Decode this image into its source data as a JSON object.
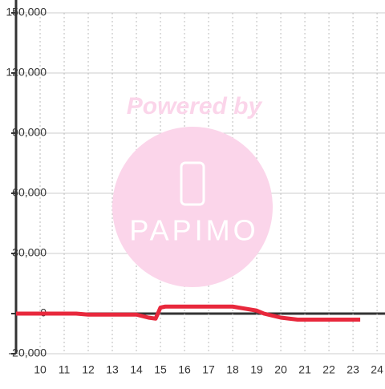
{
  "chart_data": {
    "type": "line",
    "x": [
      9,
      11.5,
      12,
      14,
      14.5,
      14.8,
      15,
      15.2,
      18,
      19,
      19.3,
      20,
      20.7,
      23.3
    ],
    "series": [
      {
        "color": "#e8283c",
        "values": [
          0,
          0,
          -500,
          -500,
          -2000,
          -2500,
          3000,
          3500,
          3500,
          1500,
          0,
          -2000,
          -3000,
          -3000
        ]
      }
    ],
    "xlim": [
      9,
      24.33
    ],
    "xticks": [
      10,
      11,
      12,
      13,
      14,
      15,
      16,
      17,
      18,
      19,
      20,
      21,
      22,
      23,
      24
    ],
    "ylim": [
      -20000,
      150000
    ],
    "yticks": [
      {
        "value": -20000,
        "label": "-20,000"
      },
      0,
      {
        "value": 30000,
        "label": "30,000"
      },
      {
        "value": 60000,
        "label": "60,000"
      },
      {
        "value": 90000,
        "label": "90,000"
      },
      {
        "value": 120000,
        "label": "120,000"
      },
      {
        "value": 150000,
        "label": "150,000"
      }
    ],
    "grid": true,
    "watermark": {
      "text": "Powered by",
      "logo": "PAPIMO"
    }
  }
}
